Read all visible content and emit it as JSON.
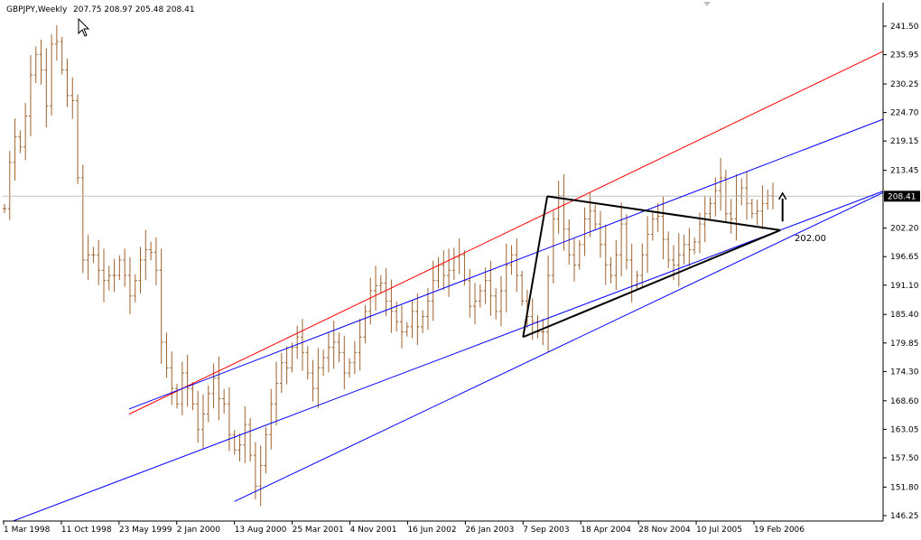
{
  "window": {
    "symbol": "GBPJPY,Weekly",
    "ohlc": "207.75 208.97 205.48 208.41"
  },
  "chart_data": {
    "type": "bar",
    "title": "GBPJPY,Weekly",
    "subtitle": "207.75 208.97 205.48 208.41",
    "current_price": 208.41,
    "current_price_label": "208.41",
    "annotation_label": "202.00",
    "annotation_value": 202.0,
    "ylim": [
      146.25,
      241.5
    ],
    "y_ticks": [
      {
        "label": "241.50",
        "value": 241.5
      },
      {
        "label": "235.95",
        "value": 235.95
      },
      {
        "label": "230.25",
        "value": 230.25
      },
      {
        "label": "224.70",
        "value": 224.7
      },
      {
        "label": "219.15",
        "value": 219.15
      },
      {
        "label": "213.45",
        "value": 213.45
      },
      {
        "label": "202.20",
        "value": 202.2
      },
      {
        "label": "196.65",
        "value": 196.65
      },
      {
        "label": "191.10",
        "value": 191.1
      },
      {
        "label": "185.40",
        "value": 185.4
      },
      {
        "label": "179.85",
        "value": 179.85
      },
      {
        "label": "174.30",
        "value": 174.3
      },
      {
        "label": "168.60",
        "value": 168.6
      },
      {
        "label": "163.05",
        "value": 163.05
      },
      {
        "label": "157.50",
        "value": 157.5
      },
      {
        "label": "151.80",
        "value": 151.8
      },
      {
        "label": "146.25",
        "value": 146.25
      }
    ],
    "x_ticks": [
      "1 Mar 1998",
      "11 Oct 1998",
      "23 May 1999",
      "2 Jan 2000",
      "13 Aug 2000",
      "25 Mar 2001",
      "4 Nov 2001",
      "16 Jun 2002",
      "26 Jan 2003",
      "7 Sep 2003",
      "18 Apr 2004",
      "28 Nov 2004",
      "10 Jul 2005",
      "19 Feb 2006"
    ],
    "series_close": [
      206.0,
      215.0,
      220.0,
      218.0,
      224.0,
      232.0,
      236.0,
      233.0,
      226.0,
      238.0,
      238.5,
      233.0,
      228.0,
      227.0,
      212.0,
      196.0,
      197.0,
      197.0,
      194.0,
      192.0,
      193.0,
      193.0,
      196.0,
      193.0,
      189.0,
      192.0,
      196.0,
      198.0,
      197.5,
      194.0,
      180.0,
      175.0,
      171.0,
      168.0,
      174.0,
      171.0,
      168.0,
      163.0,
      166.0,
      170.0,
      173.0,
      169.0,
      168.0,
      162.0,
      159.0,
      160.0,
      164.0,
      158.0,
      152.0,
      156.0,
      162.0,
      168.0,
      172.0,
      176.0,
      175.0,
      179.0,
      181.0,
      178.0,
      174.0,
      171.0,
      175.0,
      177.0,
      179.0,
      180.0,
      178.0,
      174.0,
      176.0,
      178.0,
      181.0,
      186.0,
      190.0,
      191.0,
      191.5,
      188.0,
      186.0,
      184.0,
      182.0,
      183.0,
      186.0,
      183.0,
      185.0,
      188.0,
      192.0,
      195.0,
      193.0,
      194.0,
      196.5,
      197.0,
      192.0,
      187.0,
      188.0,
      190.0,
      192.0,
      189.0,
      186.0,
      190.0,
      195.0,
      197.0,
      193.0,
      188.0,
      185.0,
      184.0,
      182.0,
      182.0,
      193.0,
      204.0,
      208.5,
      202.0,
      197.0,
      195.0,
      199.0,
      204.0,
      205.5,
      203.0,
      199.0,
      195.0,
      193.0,
      197.0,
      203.0,
      196.0,
      191.0,
      193.0,
      197.0,
      201.0,
      204.0,
      204.5,
      200.0,
      196.0,
      195.0,
      197.0,
      199.0,
      198.0,
      199.5,
      203.0,
      205.0,
      207.0,
      209.5,
      212.0,
      205.0,
      204.0,
      208.5,
      210.0,
      207.0,
      205.0,
      205.5,
      207.0,
      208.5,
      208.41
    ],
    "channels": [
      {
        "name": "upper",
        "color": "#ff0000",
        "x": [
          "1 Jul 1999",
          "1 Sep 2007"
        ],
        "y": [
          166.0,
          238.0
        ]
      },
      {
        "name": "middle",
        "color": "#0000ff",
        "x": [
          "1 Jul 1999",
          "1 Sep 2007"
        ],
        "y": [
          167.0,
          224.5
        ]
      },
      {
        "name": "lower",
        "color": "#0000ff",
        "x": [
          "1 Mar 1998",
          "1 Sep 2007"
        ],
        "y": [
          144.5,
          210.5
        ]
      },
      {
        "name": "lower-start",
        "color": "#0000ff",
        "x": [
          "13 Aug 2000",
          "1 Sep 2007"
        ],
        "y": [
          149.0,
          210.5
        ]
      }
    ],
    "pattern": {
      "color": "#000000",
      "points": [
        {
          "x": "7 Sep 2003",
          "y": 181.0
        },
        {
          "x": "10 Dec 2003",
          "y": 208.4
        },
        {
          "x": "1 Jun 2006",
          "y": 201.8
        }
      ]
    },
    "arrow": {
      "x": "10 Jun 2006",
      "from": 203.5,
      "to": 209.0
    },
    "grid": false,
    "legend": "none",
    "colors": {
      "background": "#ffffff",
      "bars": "#a0622c",
      "price_line": "#c0c0c0",
      "axis": "#000000"
    }
  }
}
